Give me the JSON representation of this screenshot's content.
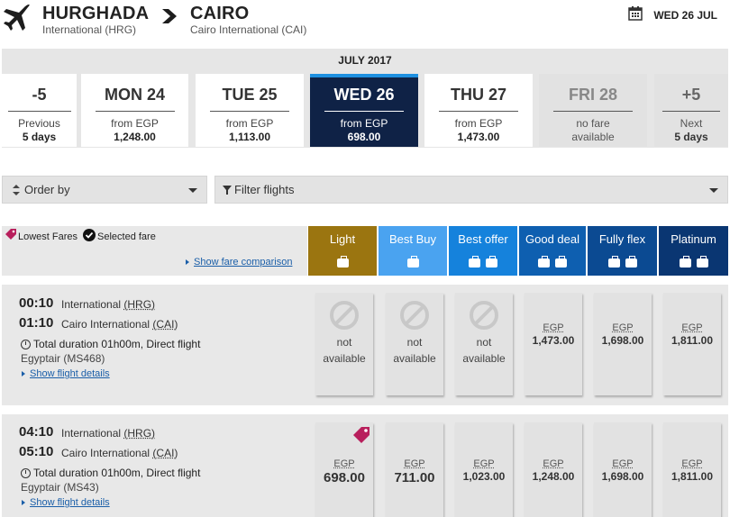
{
  "header": {
    "origin_city": "HURGHADA",
    "origin_airport": "International (HRG)",
    "dest_city": "CAIRO",
    "dest_airport": "Cairo International (CAI)",
    "date": "WED 26 JUL"
  },
  "calendar": {
    "month": "JULY 2017",
    "prev": {
      "label": "-5",
      "line1": "Previous",
      "line2": "5 days"
    },
    "next": {
      "label": "+5",
      "line1": "Next",
      "line2": "5 days"
    },
    "days": [
      {
        "name": "MON 24",
        "from": "from EGP",
        "amount": "1,248.00"
      },
      {
        "name": "TUE 25",
        "from": "from EGP",
        "amount": "1,113.00"
      },
      {
        "name": "WED 26",
        "from": "from EGP",
        "amount": "698.00"
      },
      {
        "name": "THU 27",
        "from": "from EGP",
        "amount": "1,473.00"
      },
      {
        "name": "FRI 28",
        "from": "no fare",
        "amount": "available"
      }
    ],
    "selected_index": 2
  },
  "filters": {
    "order_by": "Order by",
    "filter_flights": "Filter flights"
  },
  "fares": {
    "legend_lowest": "Lowest Fares",
    "legend_selected": "Selected fare",
    "compare_link": "Show fare comparison",
    "columns": [
      {
        "name": "Light",
        "color": "#9b7510",
        "bags": 1
      },
      {
        "name": "Best Buy",
        "color": "#4aa3f0",
        "bags": 1
      },
      {
        "name": "Best offer",
        "color": "#1582dc",
        "bags": 2
      },
      {
        "name": "Good deal",
        "color": "#0e5fb0",
        "bags": 2
      },
      {
        "name": "Fully flex",
        "color": "#0b4a92",
        "bags": 2
      },
      {
        "name": "Platinum",
        "color": "#0a3672",
        "bags": 2
      }
    ]
  },
  "flights": [
    {
      "dep_time": "00:10",
      "dep_airport": "International",
      "dep_code": "(HRG)",
      "arr_time": "01:10",
      "arr_airport": "Cairo International",
      "arr_code": "(CAI)",
      "duration_label": "Total duration",
      "duration": "01h00m, Direct flight",
      "operator": "Egyptair (MS468)",
      "details_link": "Show flight details",
      "prices": [
        {
          "available": false,
          "line1": "not",
          "line2": "available"
        },
        {
          "available": false,
          "line1": "not",
          "line2": "available"
        },
        {
          "available": false,
          "line1": "not",
          "line2": "available"
        },
        {
          "available": true,
          "currency": "EGP",
          "amount": "1,473.00"
        },
        {
          "available": true,
          "currency": "EGP",
          "amount": "1,698.00"
        },
        {
          "available": true,
          "currency": "EGP",
          "amount": "1,811.00"
        }
      ]
    },
    {
      "dep_time": "04:10",
      "dep_airport": "International",
      "dep_code": "(HRG)",
      "arr_time": "05:10",
      "arr_airport": "Cairo International",
      "arr_code": "(CAI)",
      "duration_label": "Total duration",
      "duration": "01h00m, Direct flight",
      "operator": "Egyptair (MS43)",
      "details_link": "Show flight details",
      "prices": [
        {
          "available": true,
          "currency": "EGP",
          "amount": "698.00",
          "lowest": true
        },
        {
          "available": true,
          "currency": "EGP",
          "amount": "711.00"
        },
        {
          "available": true,
          "currency": "EGP",
          "amount": "1,023.00"
        },
        {
          "available": true,
          "currency": "EGP",
          "amount": "1,248.00"
        },
        {
          "available": true,
          "currency": "EGP",
          "amount": "1,698.00"
        },
        {
          "available": true,
          "currency": "EGP",
          "amount": "1,811.00"
        }
      ]
    }
  ]
}
